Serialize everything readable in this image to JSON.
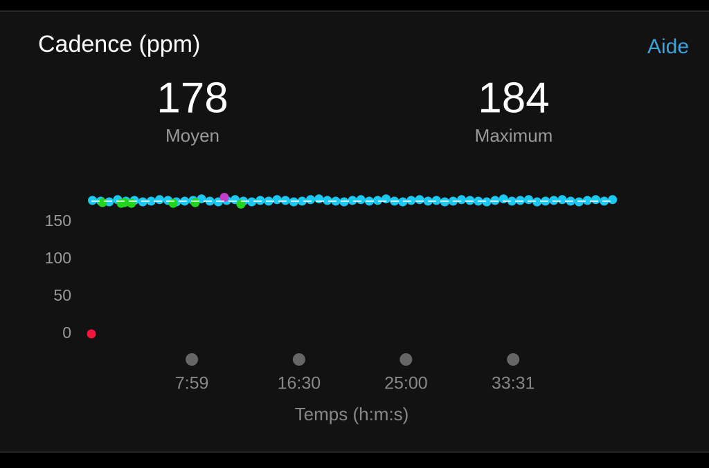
{
  "header": {
    "title": "Cadence (ppm)",
    "help": "Aide"
  },
  "stats": [
    {
      "value": 178,
      "label": "Moyen"
    },
    {
      "value": 184,
      "label": "Maximum"
    }
  ],
  "chart_data": {
    "type": "scatter",
    "x_label": "Temps (h:m:s)",
    "xlim": [
      0,
      2486
    ],
    "ylim": [
      0,
      190
    ],
    "xticks": [
      {
        "value": 479,
        "label": "7:59"
      },
      {
        "value": 990,
        "label": "16:30"
      },
      {
        "value": 1500,
        "label": "25:00"
      },
      {
        "value": 2011,
        "label": "33:31"
      }
    ],
    "yticks": [
      0,
      50,
      100,
      150
    ],
    "series": [
      {
        "color": "#1cc8f2",
        "x": [
          5,
          45,
          85,
          125,
          165,
          205,
          245,
          285,
          325,
          365,
          405,
          445,
          485,
          525,
          565,
          605,
          645,
          685,
          725,
          765,
          805,
          845,
          885,
          925,
          965,
          1005,
          1045,
          1085,
          1125,
          1165,
          1205,
          1245,
          1285,
          1325,
          1365,
          1405,
          1445,
          1485,
          1525,
          1565,
          1605,
          1645,
          1685,
          1725,
          1765,
          1805,
          1845,
          1885,
          1925,
          1965,
          2005,
          2045,
          2085,
          2125,
          2165,
          2205,
          2245,
          2285,
          2325,
          2365,
          2405,
          2445,
          2485
        ],
        "values": [
          179,
          178,
          177,
          180,
          178,
          179,
          177,
          178,
          180,
          179,
          177,
          178,
          179,
          181,
          178,
          177,
          179,
          180,
          178,
          177,
          179,
          178,
          180,
          179,
          177,
          178,
          180,
          181,
          179,
          178,
          177,
          179,
          180,
          178,
          179,
          181,
          178,
          177,
          179,
          180,
          178,
          179,
          177,
          178,
          180,
          179,
          178,
          177,
          179,
          181,
          178,
          179,
          180,
          177,
          178,
          179,
          180,
          178,
          177,
          179,
          180,
          178,
          180
        ]
      },
      {
        "color": "#22d61f",
        "x": [
          53,
          142,
          158,
          191,
          390,
          495,
          713
        ],
        "values": [
          176,
          175,
          176,
          175,
          175,
          176,
          174
        ]
      },
      {
        "color": "#c33dc8",
        "x": [
          634
        ],
        "values": [
          183
        ]
      },
      {
        "color": "#f2163c",
        "x": [
          0
        ],
        "values": [
          0
        ]
      }
    ]
  }
}
